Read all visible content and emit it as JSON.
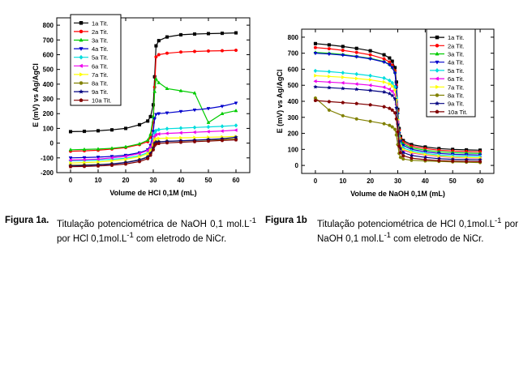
{
  "chart_data": [
    {
      "type": "line",
      "xlabel": "Volume de HCl 0,1M (mL)",
      "ylabel": "E (mV) vs Ag/AgCl",
      "xlim": [
        -5,
        65
      ],
      "ylim": [
        -200,
        850
      ],
      "xticks": [
        0,
        10,
        20,
        30,
        40,
        50,
        60
      ],
      "yticks": [
        -200,
        -100,
        0,
        100,
        200,
        300,
        400,
        500,
        600,
        700,
        800
      ],
      "legend": "top-left",
      "x": [
        0,
        5,
        10,
        15,
        20,
        25,
        28,
        29,
        30,
        30.5,
        31,
        32,
        35,
        40,
        45,
        50,
        55,
        60
      ],
      "series": [
        {
          "name": "1a Tit.",
          "color": "#000000",
          "marker": "square",
          "values": [
            78,
            80,
            84,
            90,
            100,
            125,
            150,
            180,
            260,
            450,
            660,
            695,
            720,
            735,
            740,
            743,
            745,
            748
          ]
        },
        {
          "name": "2a Tit.",
          "color": "#ff0000",
          "marker": "circle",
          "values": [
            -55,
            -52,
            -48,
            -40,
            -30,
            -10,
            10,
            40,
            140,
            380,
            585,
            600,
            610,
            618,
            622,
            625,
            627,
            630
          ]
        },
        {
          "name": "3a Tit.",
          "color": "#00cc00",
          "marker": "triangle-up",
          "values": [
            -45,
            -43,
            -40,
            -35,
            -25,
            -5,
            20,
            60,
            180,
            350,
            435,
            410,
            370,
            355,
            340,
            140,
            200,
            220
          ]
        },
        {
          "name": "4a Tit.",
          "color": "#0000cc",
          "marker": "triangle-down",
          "values": [
            -100,
            -98,
            -95,
            -90,
            -82,
            -65,
            -45,
            -15,
            80,
            165,
            195,
            200,
            205,
            215,
            225,
            235,
            250,
            272
          ]
        },
        {
          "name": "5a Tit.",
          "color": "#00dddd",
          "marker": "diamond",
          "values": [
            -120,
            -118,
            -115,
            -110,
            -102,
            -85,
            -65,
            -40,
            20,
            70,
            85,
            92,
            98,
            102,
            106,
            110,
            114,
            120
          ]
        },
        {
          "name": "6a Tit.",
          "color": "#ee00ee",
          "marker": "triangle-left",
          "values": [
            -115,
            -112,
            -108,
            -100,
            -90,
            -70,
            -50,
            -25,
            15,
            45,
            58,
            62,
            66,
            70,
            74,
            78,
            82,
            88
          ]
        },
        {
          "name": "7a Tit.",
          "color": "#ffff00",
          "marker": "triangle-right",
          "values": [
            -135,
            -132,
            -128,
            -120,
            -110,
            -92,
            -72,
            -50,
            -10,
            20,
            30,
            32,
            34,
            36,
            38,
            40,
            42,
            45
          ]
        },
        {
          "name": "8a Tit.",
          "color": "#808000",
          "marker": "hexagon",
          "values": [
            -150,
            -148,
            -145,
            -140,
            -130,
            -112,
            -92,
            -70,
            -30,
            0,
            8,
            10,
            12,
            15,
            18,
            22,
            25,
            30
          ]
        },
        {
          "name": "9a Tit.",
          "color": "#000080",
          "marker": "star",
          "values": [
            -155,
            -152,
            -148,
            -142,
            -132,
            -115,
            -95,
            -72,
            -35,
            -5,
            5,
            8,
            12,
            16,
            20,
            25,
            30,
            40
          ]
        },
        {
          "name": "10a Tit.",
          "color": "#800000",
          "marker": "pentagon",
          "values": [
            -160,
            -158,
            -155,
            -150,
            -142,
            -125,
            -105,
            -82,
            -45,
            -15,
            -5,
            -2,
            2,
            6,
            10,
            14,
            18,
            22
          ]
        }
      ]
    },
    {
      "type": "line",
      "xlabel": "Volume de NaOH 0,1M (mL)",
      "ylabel": "E (mV) vs Ag/AgCl",
      "xlim": [
        -5,
        65
      ],
      "ylim": [
        -50,
        850
      ],
      "xticks": [
        0,
        10,
        20,
        30,
        40,
        50,
        60
      ],
      "yticks": [
        0,
        100,
        200,
        300,
        400,
        500,
        600,
        700,
        800
      ],
      "legend": "top-right",
      "x": [
        0,
        5,
        10,
        15,
        20,
        25,
        27,
        28,
        29,
        29.5,
        30,
        30.5,
        31,
        32,
        35,
        40,
        45,
        50,
        55,
        60
      ],
      "series": [
        {
          "name": "1a Tit.",
          "color": "#000000",
          "marker": "square",
          "values": [
            760,
            752,
            742,
            730,
            715,
            690,
            670,
            650,
            610,
            520,
            350,
            230,
            180,
            155,
            130,
            115,
            105,
            100,
            97,
            95
          ]
        },
        {
          "name": "2a Tit.",
          "color": "#ff0000",
          "marker": "circle",
          "values": [
            735,
            728,
            718,
            705,
            690,
            665,
            645,
            625,
            590,
            500,
            340,
            220,
            170,
            145,
            120,
            105,
            95,
            90,
            87,
            85
          ]
        },
        {
          "name": "3a Tit.",
          "color": "#00cc00",
          "marker": "triangle-up",
          "values": [
            705,
            700,
            692,
            680,
            668,
            648,
            630,
            612,
            580,
            490,
            330,
            210,
            160,
            135,
            110,
            95,
            85,
            80,
            77,
            75
          ]
        },
        {
          "name": "4a Tit.",
          "color": "#0000cc",
          "marker": "triangle-down",
          "values": [
            700,
            695,
            688,
            678,
            665,
            645,
            628,
            610,
            575,
            485,
            320,
            200,
            150,
            125,
            100,
            85,
            75,
            70,
            67,
            65
          ]
        },
        {
          "name": "5a Tit.",
          "color": "#00dddd",
          "marker": "diamond",
          "values": [
            590,
            585,
            578,
            570,
            560,
            545,
            530,
            515,
            490,
            420,
            290,
            180,
            135,
            110,
            90,
            75,
            65,
            60,
            57,
            55
          ]
        },
        {
          "name": "6a Tit.",
          "color": "#ee00ee",
          "marker": "triangle-left",
          "values": [
            525,
            520,
            515,
            508,
            500,
            488,
            475,
            462,
            440,
            380,
            270,
            165,
            120,
            95,
            78,
            65,
            55,
            50,
            47,
            45
          ]
        },
        {
          "name": "7a Tit.",
          "color": "#ffff00",
          "marker": "triangle-right",
          "values": [
            560,
            555,
            550,
            542,
            534,
            520,
            508,
            495,
            472,
            410,
            285,
            170,
            125,
            100,
            82,
            68,
            58,
            52,
            49,
            47
          ]
        },
        {
          "name": "8a Tit.",
          "color": "#808000",
          "marker": "hexagon",
          "values": [
            420,
            345,
            310,
            290,
            275,
            260,
            250,
            240,
            225,
            190,
            130,
            75,
            50,
            40,
            32,
            28,
            25,
            22,
            20,
            18
          ]
        },
        {
          "name": "9a Tit.",
          "color": "#000080",
          "marker": "star",
          "values": [
            490,
            485,
            480,
            475,
            468,
            458,
            448,
            436,
            415,
            360,
            255,
            150,
            105,
            80,
            62,
            50,
            42,
            38,
            36,
            35
          ]
        },
        {
          "name": "10a Tit.",
          "color": "#800000",
          "marker": "pentagon",
          "values": [
            405,
            398,
            392,
            386,
            378,
            366,
            356,
            345,
            328,
            290,
            210,
            120,
            80,
            60,
            45,
            36,
            30,
            27,
            25,
            24
          ]
        }
      ]
    }
  ],
  "captions": {
    "left": {
      "label": "Figura 1a",
      "label_suffix": ".",
      "text_1": "Titulação potenciométrica de NaOH 0,1 mol.L",
      "sup_1": "-1",
      "text_2": " por HCl 0,1mol.L",
      "sup_2": "-1",
      "text_3": " com eletrodo de NiCr."
    },
    "right": {
      "label": "Figura 1b",
      "label_suffix": "",
      "text_1": "Titulação potenciométrica de HCl 0,1mol.L",
      "sup_1": "-1",
      "text_2": " por NaOH 0,1 mol.L",
      "sup_2": "-1",
      "text_3": " com eletrodo de NiCr."
    }
  }
}
